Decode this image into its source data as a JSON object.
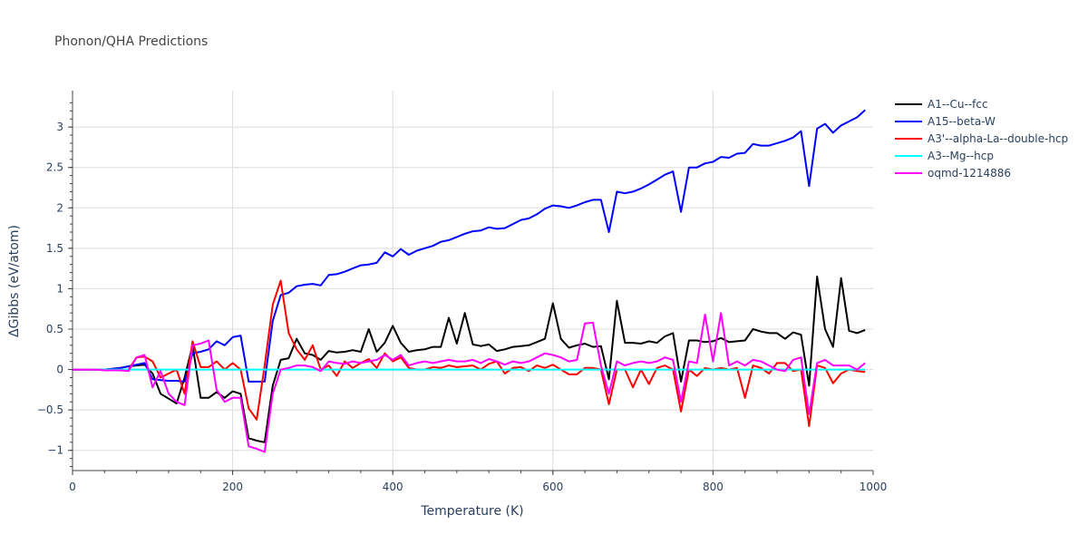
{
  "chart_data": {
    "type": "line",
    "title": "Phonon/QHA Predictions",
    "xlabel": "Temperature (K)",
    "ylabel": "ΔGibbs (eV/atom)",
    "xlim": [
      0,
      1000
    ],
    "ylim": [
      -1.25,
      3.45
    ],
    "xticks": [
      0,
      200,
      400,
      600,
      800,
      1000
    ],
    "yticks": [
      -1,
      -0.5,
      0,
      0.5,
      1,
      1.5,
      2,
      2.5,
      3
    ],
    "xtick_labels": [
      "0",
      "200",
      "400",
      "600",
      "800",
      "1000"
    ],
    "ytick_labels": [
      "−1",
      "−0.5",
      "0",
      "0.5",
      "1",
      "1.5",
      "2",
      "2.5",
      "3"
    ],
    "grid": true,
    "legend_position": "top-right",
    "x": [
      0,
      10,
      20,
      30,
      40,
      50,
      60,
      70,
      80,
      90,
      100,
      110,
      120,
      130,
      140,
      150,
      160,
      170,
      180,
      190,
      200,
      210,
      220,
      230,
      240,
      250,
      260,
      270,
      280,
      290,
      300,
      310,
      320,
      330,
      340,
      350,
      360,
      370,
      380,
      390,
      400,
      410,
      420,
      430,
      440,
      450,
      460,
      470,
      480,
      490,
      500,
      510,
      520,
      530,
      540,
      550,
      560,
      570,
      580,
      590,
      600,
      610,
      620,
      630,
      640,
      650,
      660,
      670,
      680,
      690,
      700,
      710,
      720,
      730,
      740,
      750,
      760,
      770,
      780,
      790,
      800,
      810,
      820,
      830,
      840,
      850,
      860,
      870,
      880,
      890,
      900,
      910,
      920,
      930,
      940,
      950,
      960,
      970,
      980,
      990
    ],
    "series": [
      {
        "name": "A1--Cu--fcc",
        "color": "#000000",
        "values": [
          0,
          0,
          0,
          0,
          0,
          0.01,
          0.02,
          0.04,
          0.05,
          0.06,
          -0.05,
          -0.3,
          -0.36,
          -0.42,
          -0.1,
          0.3,
          -0.35,
          -0.35,
          -0.28,
          -0.35,
          -0.27,
          -0.3,
          -0.85,
          -0.88,
          -0.9,
          -0.2,
          0.12,
          0.14,
          0.38,
          0.2,
          0.18,
          0.12,
          0.23,
          0.21,
          0.22,
          0.24,
          0.22,
          0.5,
          0.22,
          0.33,
          0.54,
          0.33,
          0.22,
          0.24,
          0.25,
          0.28,
          0.28,
          0.64,
          0.32,
          0.7,
          0.31,
          0.29,
          0.31,
          0.23,
          0.25,
          0.28,
          0.29,
          0.3,
          0.34,
          0.38,
          0.82,
          0.38,
          0.27,
          0.3,
          0.32,
          0.28,
          0.29,
          -0.12,
          0.85,
          0.33,
          0.33,
          0.32,
          0.35,
          0.33,
          0.41,
          0.45,
          -0.15,
          0.36,
          0.36,
          0.34,
          0.35,
          0.39,
          0.34,
          0.35,
          0.36,
          0.5,
          0.47,
          0.45,
          0.45,
          0.38,
          0.46,
          0.43,
          -0.2,
          1.15,
          0.5,
          0.28,
          1.13,
          0.48,
          0.45,
          0.49
        ]
      },
      {
        "name": "A15--beta-W",
        "color": "#0000ff",
        "values": [
          0,
          0,
          0,
          0,
          0,
          0.01,
          0.02,
          0.04,
          0.06,
          0.08,
          -0.12,
          -0.13,
          -0.14,
          -0.14,
          -0.15,
          0.2,
          0.22,
          0.25,
          0.35,
          0.3,
          0.4,
          0.42,
          -0.15,
          -0.15,
          -0.15,
          0.6,
          0.92,
          0.95,
          1.03,
          1.05,
          1.06,
          1.04,
          1.17,
          1.18,
          1.21,
          1.25,
          1.29,
          1.3,
          1.32,
          1.45,
          1.4,
          1.49,
          1.42,
          1.47,
          1.5,
          1.53,
          1.58,
          1.6,
          1.64,
          1.68,
          1.71,
          1.72,
          1.76,
          1.74,
          1.75,
          1.8,
          1.85,
          1.87,
          1.92,
          1.99,
          2.03,
          2.02,
          2.0,
          2.03,
          2.07,
          2.1,
          2.1,
          1.7,
          2.2,
          2.18,
          2.2,
          2.24,
          2.29,
          2.35,
          2.41,
          2.45,
          1.95,
          2.5,
          2.5,
          2.55,
          2.57,
          2.63,
          2.62,
          2.67,
          2.68,
          2.79,
          2.77,
          2.77,
          2.8,
          2.83,
          2.87,
          2.95,
          2.27,
          2.98,
          3.04,
          2.93,
          3.02,
          3.07,
          3.12,
          3.21
        ]
      },
      {
        "name": "A3'--alpha-La--double-hcp",
        "color": "#ff0000",
        "values": [
          0,
          0,
          0,
          0,
          0,
          -0.01,
          -0.01,
          0.0,
          0.15,
          0.16,
          0.1,
          -0.1,
          -0.05,
          0.0,
          -0.3,
          0.35,
          0.03,
          0.03,
          0.1,
          0.0,
          0.08,
          0.0,
          -0.48,
          -0.62,
          0.05,
          0.8,
          1.1,
          0.45,
          0.25,
          0.12,
          0.3,
          0.0,
          0.05,
          -0.08,
          0.1,
          0.02,
          0.08,
          0.13,
          0.02,
          0.2,
          0.1,
          0.15,
          0.02,
          0.0,
          0.0,
          0.03,
          0.02,
          0.05,
          0.03,
          0.04,
          0.05,
          0.0,
          0.07,
          0.1,
          -0.05,
          0.02,
          0.03,
          -0.02,
          0.05,
          0.02,
          0.06,
          0.0,
          -0.06,
          -0.06,
          0.02,
          0.02,
          0.0,
          -0.43,
          0.0,
          0.0,
          -0.22,
          0.0,
          -0.18,
          0.02,
          0.05,
          0.0,
          -0.52,
          0.0,
          -0.08,
          0.02,
          0.0,
          0.02,
          0.0,
          0.02,
          -0.35,
          0.05,
          0.02,
          -0.05,
          0.08,
          0.08,
          -0.02,
          0.0,
          -0.7,
          0.05,
          0.02,
          -0.17,
          -0.05,
          0.0,
          -0.02,
          -0.03
        ]
      },
      {
        "name": "A3--Mg--hcp",
        "color": "#00ffff",
        "values": [
          0,
          0,
          0,
          0,
          0,
          0,
          0,
          0,
          0,
          0,
          0,
          0,
          0,
          0,
          0,
          0,
          0,
          0,
          0,
          0,
          0,
          0,
          0,
          0,
          0,
          0,
          0,
          0,
          0,
          0,
          0,
          0,
          0,
          0,
          0,
          0,
          0,
          0,
          0,
          0,
          0,
          0,
          0,
          0,
          0,
          0,
          0,
          0,
          0,
          0,
          0,
          0,
          0,
          0,
          0,
          0,
          0,
          0,
          0,
          0,
          0,
          0,
          0,
          0,
          0,
          0,
          0,
          0,
          0,
          0,
          0,
          0,
          0,
          0,
          0,
          0,
          0,
          0,
          0,
          0,
          0,
          0,
          0,
          0,
          0,
          0,
          0,
          0,
          0,
          0,
          0,
          0,
          0,
          0,
          0,
          0,
          0,
          0,
          0,
          0
        ]
      },
      {
        "name": "oqmd-1214886",
        "color": "#ff00ff",
        "values": [
          0,
          0,
          0,
          0,
          -0.01,
          -0.01,
          -0.01,
          -0.02,
          0.15,
          0.18,
          -0.22,
          -0.02,
          -0.3,
          -0.4,
          -0.44,
          0.3,
          0.32,
          0.36,
          -0.25,
          -0.4,
          -0.35,
          -0.35,
          -0.95,
          -0.98,
          -1.02,
          -0.3,
          0.0,
          0.02,
          0.05,
          0.05,
          0.03,
          -0.02,
          0.1,
          0.08,
          0.07,
          0.1,
          0.08,
          0.1,
          0.12,
          0.18,
          0.12,
          0.18,
          0.05,
          0.08,
          0.1,
          0.08,
          0.1,
          0.12,
          0.1,
          0.1,
          0.12,
          0.08,
          0.13,
          0.1,
          0.06,
          0.1,
          0.08,
          0.1,
          0.15,
          0.2,
          0.18,
          0.15,
          0.1,
          0.12,
          0.57,
          0.58,
          0.05,
          -0.3,
          0.1,
          0.05,
          0.08,
          0.1,
          0.08,
          0.1,
          0.15,
          0.12,
          -0.4,
          0.1,
          0.08,
          0.68,
          0.1,
          0.7,
          0.05,
          0.1,
          0.05,
          0.12,
          0.1,
          0.05,
          0.0,
          -0.02,
          0.12,
          0.15,
          -0.55,
          0.08,
          0.12,
          0.05,
          0.05,
          0.05,
          0.0,
          0.08
        ]
      }
    ]
  }
}
